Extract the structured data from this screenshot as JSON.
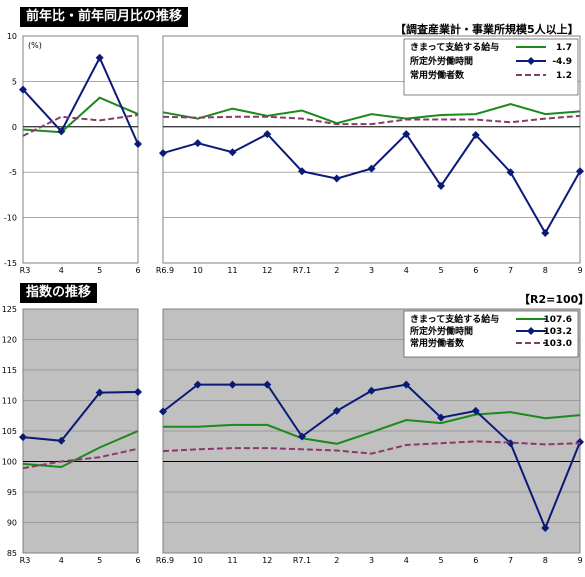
{
  "chart_data": [
    {
      "type": "line",
      "title": "前年比・前年同月比の推移",
      "note": "【調査産業計・事業所規模5人以上】",
      "unit_label": "(%)",
      "ylim": [
        -15,
        10
      ],
      "yticks": [
        "10",
        "5",
        "0",
        "-5",
        "-10",
        "-15"
      ],
      "background": "#ffffff",
      "annual": {
        "categories": [
          "R3",
          "4",
          "5",
          "6"
        ],
        "series": [
          {
            "name": "きまって支給する給与",
            "color": "#1a8a1a",
            "style": "solid",
            "marker": false,
            "values": [
              -0.3,
              -0.6,
              3.2,
              1.4
            ]
          },
          {
            "name": "所定外労働時間",
            "color": "#0a1a78",
            "style": "solid",
            "marker": true,
            "values": [
              4.1,
              -0.5,
              7.6,
              -1.9
            ]
          },
          {
            "name": "常用労働者数",
            "color": "#8a3a6a",
            "style": "dashed",
            "marker": false,
            "values": [
              -1.0,
              1.1,
              0.7,
              1.3
            ]
          }
        ]
      },
      "monthly": {
        "categories": [
          "R6.9",
          "10",
          "11",
          "12",
          "R7.1",
          "2",
          "3",
          "4",
          "5",
          "6",
          "7",
          "8",
          "9"
        ],
        "series": [
          {
            "name": "きまって支給する給与",
            "color": "#1a8a1a",
            "style": "solid",
            "marker": false,
            "values": [
              1.6,
              0.9,
              2.0,
              1.2,
              1.8,
              0.4,
              1.4,
              0.9,
              1.3,
              1.4,
              2.5,
              1.4,
              1.7
            ]
          },
          {
            "name": "所定外労働時間",
            "color": "#0a1a78",
            "style": "solid",
            "marker": true,
            "values": [
              -2.9,
              -1.8,
              -2.8,
              -0.8,
              -4.9,
              -5.7,
              -4.6,
              -0.8,
              -6.5,
              -0.9,
              -5.0,
              -11.7,
              -4.9
            ]
          },
          {
            "name": "常用労働者数",
            "color": "#8a3a6a",
            "style": "dashed",
            "marker": false,
            "values": [
              1.1,
              1.0,
              1.1,
              1.1,
              0.9,
              0.3,
              0.3,
              0.8,
              0.8,
              0.8,
              0.5,
              0.9,
              1.2
            ]
          }
        ]
      },
      "legend": [
        {
          "name": "きまって支給する給与",
          "value": "1.7"
        },
        {
          "name": "所定外労働時間",
          "value": "-4.9"
        },
        {
          "name": "常用労働者数",
          "value": "1.2"
        }
      ]
    },
    {
      "type": "line",
      "title": "指数の推移",
      "note": "【R2=100】",
      "ylim": [
        85,
        125
      ],
      "yticks": [
        "125",
        "120",
        "115",
        "110",
        "105",
        "100",
        "95",
        "90",
        "85"
      ],
      "background": "#c0c0c0",
      "annual": {
        "categories": [
          "R3",
          "4",
          "5",
          "6"
        ],
        "series": [
          {
            "name": "きまって支給する給与",
            "color": "#1a8a1a",
            "style": "solid",
            "marker": false,
            "values": [
              99.6,
              99.1,
              102.3,
              105.0
            ]
          },
          {
            "name": "所定外労働時間",
            "color": "#0a1a78",
            "style": "solid",
            "marker": true,
            "values": [
              104.0,
              103.4,
              111.3,
              111.4
            ]
          },
          {
            "name": "常用労働者数",
            "color": "#8a3a6a",
            "style": "dashed",
            "marker": false,
            "values": [
              98.9,
              100.0,
              100.7,
              102.1
            ]
          }
        ]
      },
      "monthly": {
        "categories": [
          "R6.9",
          "10",
          "11",
          "12",
          "R7.1",
          "2",
          "3",
          "4",
          "5",
          "6",
          "7",
          "8",
          "9"
        ],
        "series": [
          {
            "name": "きまって支給する給与",
            "color": "#1a8a1a",
            "style": "solid",
            "marker": false,
            "values": [
              105.7,
              105.7,
              106.0,
              106.0,
              103.8,
              102.9,
              104.8,
              106.8,
              106.3,
              107.7,
              108.1,
              107.1,
              107.6
            ]
          },
          {
            "name": "所定外労働時間",
            "color": "#0a1a78",
            "style": "solid",
            "marker": true,
            "values": [
              108.2,
              112.6,
              112.6,
              112.6,
              104.1,
              108.3,
              111.6,
              112.6,
              107.2,
              108.3,
              103.0,
              89.1,
              103.2
            ]
          },
          {
            "name": "常用労働者数",
            "color": "#8a3a6a",
            "style": "dashed",
            "marker": false,
            "values": [
              101.7,
              102.0,
              102.2,
              102.2,
              102.0,
              101.8,
              101.3,
              102.7,
              103.0,
              103.3,
              103.1,
              102.8,
              103.0
            ]
          }
        ]
      },
      "legend": [
        {
          "name": "きまって支給する給与",
          "value": "107.6"
        },
        {
          "name": "所定外労働時間",
          "value": "103.2"
        },
        {
          "name": "常用労働者数",
          "value": "103.0"
        }
      ]
    }
  ]
}
